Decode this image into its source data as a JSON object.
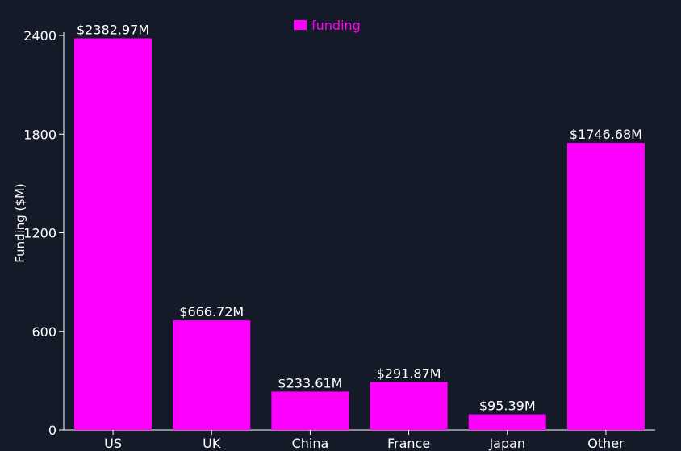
{
  "theme": {
    "background": "#141a28",
    "bar_color": "#ff00ff",
    "text_color": "#ffffff",
    "axis_color": "#ffffff",
    "legend_text_color": "#ff00ff"
  },
  "chart_data": {
    "type": "bar",
    "title": "",
    "xlabel": "",
    "ylabel": "Funding ($M)",
    "ylim": [
      0,
      2400
    ],
    "yticks": [
      0,
      600,
      1200,
      1800,
      2400
    ],
    "grid": false,
    "legend_position": "top-center",
    "categories": [
      "US",
      "UK",
      "China",
      "France",
      "Japan",
      "Other"
    ],
    "series": [
      {
        "name": "funding",
        "values": [
          2382.97,
          666.72,
          233.61,
          291.87,
          95.39,
          1746.68
        ],
        "data_labels": [
          "$2382.97M",
          "$666.72M",
          "$233.61M",
          "$291.87M",
          "$95.39M",
          "$1746.68M"
        ]
      }
    ]
  }
}
